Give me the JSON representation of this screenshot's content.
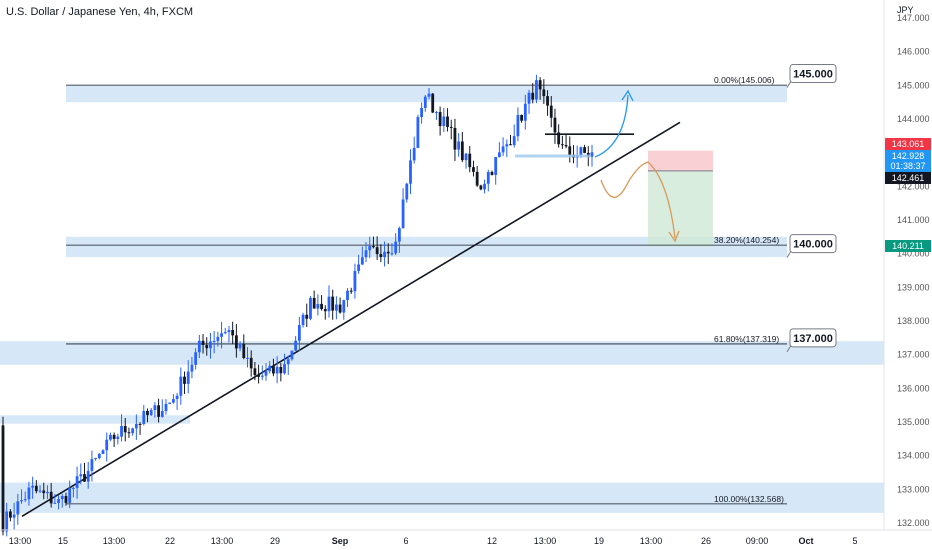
{
  "chart_data": {
    "type": "candlestick",
    "title": "U.S. Dollar / Japanese Yen, 4h, FXCM",
    "currency_label": "JPY",
    "ylim": [
      131.8,
      147.3
    ],
    "y_ticks": [
      132.0,
      133.0,
      134.0,
      135.0,
      136.0,
      137.0,
      138.0,
      139.0,
      140.0,
      141.0,
      142.0,
      143.0,
      144.0,
      145.0,
      146.0,
      147.0
    ],
    "y_tick_labels": [
      "132.000",
      "133.000",
      "134.000",
      "135.000",
      "136.000",
      "137.000",
      "138.000",
      "139.000",
      "140.000",
      "141.000",
      "142.000",
      "143.000",
      "144.000",
      "145.000",
      "146.000",
      "147.000"
    ],
    "x_tick_labels": [
      "13:00",
      "15",
      "13:00",
      "22",
      "13:00",
      "29",
      "Sep",
      "6",
      "12",
      "13:00",
      "19",
      "13:00",
      "26",
      "09:00",
      "Oct",
      "5"
    ],
    "price_badges": [
      {
        "label": "143.061",
        "value": 143.061,
        "color": "#f23645"
      },
      {
        "label": "142.928",
        "value": 142.928,
        "color": "#2196f3"
      },
      {
        "label": "01:38:37",
        "value": 142.69,
        "color": "#2196f3"
      },
      {
        "label": "142.461",
        "value": 142.461,
        "color": "#131722"
      },
      {
        "label": "140.211",
        "value": 140.211,
        "color": "#089981"
      }
    ],
    "zones": [
      {
        "from": 144.5,
        "to": 145.0,
        "label": "145.000"
      },
      {
        "from": 139.9,
        "to": 140.5,
        "label": "140.000"
      },
      {
        "from": 136.7,
        "to": 137.4,
        "label": "137.000"
      },
      {
        "from": 132.3,
        "to": 133.2,
        "label": ""
      }
    ],
    "fib_levels": [
      {
        "value": 145.006,
        "label": "0.00%(145.006)"
      },
      {
        "value": 140.254,
        "label": "38.20%(140.254)"
      },
      {
        "value": 137.319,
        "label": "61.80%(137.319)"
      },
      {
        "value": 132.568,
        "label": "100.00%(132.568)"
      }
    ],
    "trendline": {
      "from": [
        132.2
      ],
      "to": [
        143.9
      ]
    },
    "position": {
      "entry": 142.461,
      "stop": 143.061,
      "target": 140.211
    },
    "colors": {
      "up": "#2962ff",
      "down": "#131722",
      "zone": "#cfe3f6",
      "stop": "#f7c6c9",
      "target": "#cfe9d6",
      "projection_up": "#2196f3",
      "projection_down": "#d69a5a"
    },
    "anchors": [
      132.0,
      133.0,
      132.6,
      133.5,
      134.6,
      135.1,
      135.6,
      137.2,
      137.8,
      136.3,
      136.6,
      138.6,
      138.4,
      140.0,
      140.3,
      144.8,
      143.5,
      142.0,
      143.3,
      145.0,
      143.0,
      142.95
    ]
  }
}
